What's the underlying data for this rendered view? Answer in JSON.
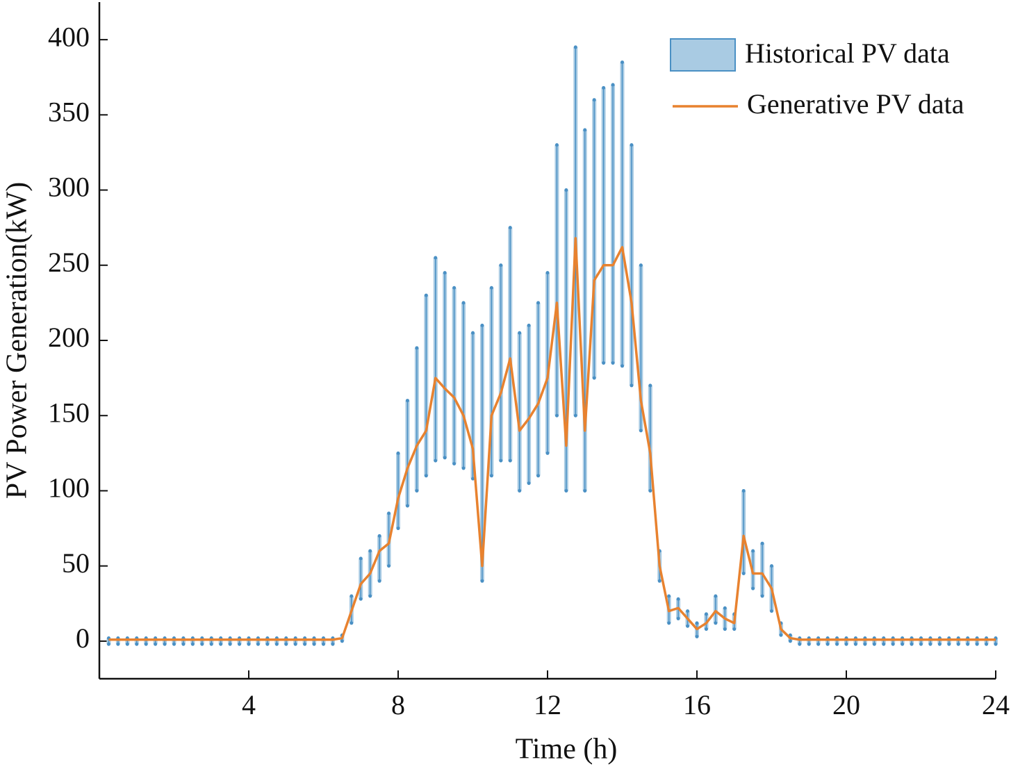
{
  "chart_data": {
    "type": "band_line",
    "xlabel": "Time (h)",
    "ylabel": "PV Power Generation(kW)",
    "xlim": [
      0,
      24
    ],
    "xticks": [
      4,
      8,
      12,
      16,
      20,
      24
    ],
    "ylim": [
      -25,
      425
    ],
    "yticks": [
      0,
      50,
      100,
      150,
      200,
      250,
      300,
      350,
      400
    ],
    "legend": "top-right",
    "x": [
      0.25,
      0.5,
      0.75,
      1,
      1.25,
      1.5,
      1.75,
      2,
      2.25,
      2.5,
      2.75,
      3,
      3.25,
      3.5,
      3.75,
      4,
      4.25,
      4.5,
      4.75,
      5,
      5.25,
      5.5,
      5.75,
      6,
      6.25,
      6.5,
      6.75,
      7,
      7.25,
      7.5,
      7.75,
      8,
      8.25,
      8.5,
      8.75,
      9,
      9.25,
      9.5,
      9.75,
      10,
      10.25,
      10.5,
      10.75,
      11,
      11.25,
      11.5,
      11.75,
      12,
      12.25,
      12.5,
      12.75,
      13,
      13.25,
      13.5,
      13.75,
      14,
      14.25,
      14.5,
      14.75,
      15,
      15.25,
      15.5,
      15.75,
      16,
      16.25,
      16.5,
      16.75,
      17,
      17.25,
      17.5,
      17.75,
      18,
      18.25,
      18.5,
      18.75,
      19,
      19.25,
      19.5,
      19.75,
      20,
      20.25,
      20.5,
      20.75,
      21,
      21.25,
      21.5,
      21.75,
      22,
      22.25,
      22.5,
      22.75,
      23,
      23.25,
      23.5,
      23.75,
      24
    ],
    "series": [
      {
        "name": "Historical PV data",
        "color": "#4a90c4",
        "fill": "#a9cbe3",
        "upper": [
          2,
          2,
          2,
          2,
          2,
          2,
          2,
          2,
          2,
          2,
          2,
          2,
          2,
          2,
          2,
          2,
          2,
          2,
          2,
          2,
          2,
          2,
          2,
          2,
          2,
          4,
          30,
          55,
          60,
          70,
          85,
          125,
          160,
          195,
          230,
          255,
          245,
          235,
          225,
          205,
          210,
          235,
          250,
          275,
          205,
          210,
          225,
          245,
          330,
          300,
          395,
          340,
          360,
          368,
          370,
          385,
          330,
          250,
          170,
          60,
          30,
          28,
          20,
          12,
          18,
          30,
          22,
          18,
          100,
          60,
          65,
          50,
          12,
          4,
          2,
          2,
          2,
          2,
          2,
          2,
          2,
          2,
          2,
          2,
          2,
          2,
          2,
          2,
          2,
          2,
          2,
          2,
          2,
          2,
          2,
          2
        ],
        "lower": [
          -2,
          -2,
          -2,
          -2,
          -2,
          -2,
          -2,
          -2,
          -2,
          -2,
          -2,
          -2,
          -2,
          -2,
          -2,
          -2,
          -2,
          -2,
          -2,
          -2,
          -2,
          -2,
          -2,
          -2,
          -2,
          0,
          12,
          28,
          30,
          40,
          50,
          75,
          90,
          100,
          110,
          120,
          122,
          118,
          115,
          108,
          40,
          110,
          120,
          120,
          100,
          105,
          110,
          125,
          150,
          100,
          150,
          100,
          175,
          185,
          185,
          183,
          170,
          140,
          100,
          40,
          12,
          15,
          10,
          3,
          8,
          12,
          8,
          8,
          45,
          35,
          30,
          20,
          4,
          0,
          -2,
          -2,
          -2,
          -2,
          -2,
          -2,
          -2,
          -2,
          -2,
          -2,
          -2,
          -2,
          -2,
          -2,
          -2,
          -2,
          -2,
          -2,
          -2,
          -2,
          -2,
          -2
        ]
      },
      {
        "name": "Generative PV data",
        "color": "#e8822f",
        "values": [
          1,
          1,
          1,
          1,
          1,
          1,
          1,
          1,
          1,
          1,
          1,
          1,
          1,
          1,
          1,
          1,
          1,
          1,
          1,
          1,
          1,
          1,
          1,
          1,
          1,
          2,
          20,
          38,
          45,
          60,
          65,
          95,
          115,
          130,
          140,
          175,
          168,
          162,
          150,
          128,
          50,
          150,
          165,
          188,
          140,
          148,
          158,
          175,
          225,
          130,
          268,
          140,
          240,
          250,
          250,
          262,
          225,
          160,
          125,
          50,
          20,
          22,
          15,
          8,
          12,
          20,
          15,
          12,
          70,
          45,
          45,
          35,
          8,
          2,
          1,
          1,
          1,
          1,
          1,
          1,
          1,
          1,
          1,
          1,
          1,
          1,
          1,
          1,
          1,
          1,
          1,
          1,
          1,
          1,
          1,
          1
        ]
      }
    ]
  }
}
